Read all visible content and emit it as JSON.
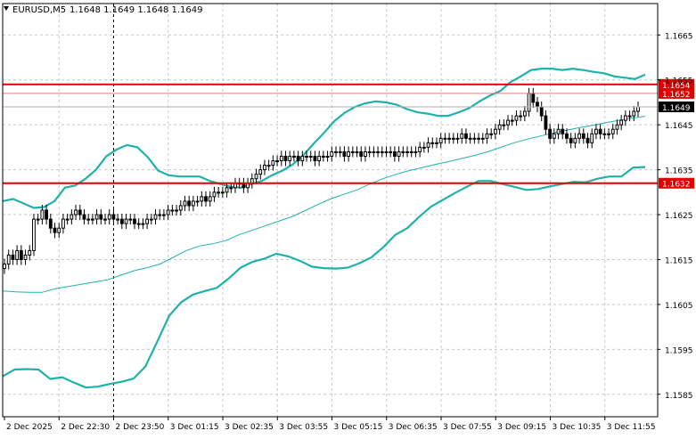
{
  "header": {
    "symbol": "EURUSD,M5",
    "quotes": "1.1648 1.1649 1.1648 1.1649"
  },
  "colors": {
    "grid": "#c8c8c8",
    "candle": "#000000",
    "band": "#20b2aa",
    "level": "#e00000",
    "current": "#000000",
    "badge_text": "#ffffff"
  },
  "chart_data": {
    "type": "candlestick",
    "title": "EURUSD,M5",
    "ylim": [
      1.158,
      1.1672
    ],
    "y_ticks": [
      "1.1665",
      "1.1655",
      "1.1645",
      "1.1635",
      "1.1625",
      "1.1615",
      "1.1605",
      "1.1595",
      "1.1585"
    ],
    "x_labels": [
      "2 Dec 2025",
      "2 Dec 22:30",
      "2 Dec 23:50",
      "3 Dec 01:15",
      "3 Dec 02:35",
      "3 Dec 03:55",
      "3 Dec 05:15",
      "3 Dec 06:35",
      "3 Dec 07:55",
      "3 Dec 09:15",
      "3 Dec 10:35",
      "3 Dec 11:55"
    ],
    "grid": true,
    "levels": [
      {
        "label": "1.1654",
        "value": 1.1654
      },
      {
        "label": "1.1652",
        "value": 1.1652
      },
      {
        "label": "1.1632",
        "value": 1.1632
      }
    ],
    "current_price": {
      "label": "1.1649",
      "value": 1.1649
    },
    "candles_close": [
      1.1614,
      1.1616,
      1.1615,
      1.1617,
      1.1615,
      1.1616,
      1.1617,
      1.1624,
      1.1624,
      1.1626,
      1.1624,
      1.1622,
      1.1621,
      1.1622,
      1.1624,
      1.1624,
      1.1625,
      1.1626,
      1.1625,
      1.1624,
      1.1624,
      1.1624,
      1.1625,
      1.1624,
      1.1624,
      1.1625,
      1.1624,
      1.1624,
      1.1623,
      1.1624,
      1.1624,
      1.1623,
      1.1623,
      1.1623,
      1.1624,
      1.1624,
      1.1625,
      1.1625,
      1.1625,
      1.1626,
      1.1626,
      1.1626,
      1.1627,
      1.1628,
      1.1627,
      1.1628,
      1.1628,
      1.1629,
      1.1628,
      1.1629,
      1.163,
      1.163,
      1.163,
      1.1631,
      1.1631,
      1.1632,
      1.1632,
      1.1631,
      1.1632,
      1.1633,
      1.1634,
      1.1635,
      1.1636,
      1.1636,
      1.1637,
      1.1637,
      1.1638,
      1.1637,
      1.1638,
      1.1638,
      1.1637,
      1.1638,
      1.1638,
      1.1638,
      1.1637,
      1.1638,
      1.1638,
      1.1638,
      1.1639,
      1.1639,
      1.1639,
      1.1638,
      1.1639,
      1.1639,
      1.1639,
      1.1638,
      1.1639,
      1.1639,
      1.1639,
      1.1639,
      1.1639,
      1.1639,
      1.1639,
      1.1638,
      1.1639,
      1.1639,
      1.1639,
      1.1639,
      1.1639,
      1.164,
      1.164,
      1.1641,
      1.1641,
      1.1641,
      1.1642,
      1.1642,
      1.1642,
      1.1642,
      1.1642,
      1.1643,
      1.1642,
      1.1642,
      1.1642,
      1.1642,
      1.1642,
      1.1643,
      1.1643,
      1.1644,
      1.1645,
      1.1645,
      1.1646,
      1.1646,
      1.1647,
      1.1647,
      1.1648,
      1.1652,
      1.165,
      1.1649,
      1.1647,
      1.1644,
      1.1642,
      1.1643,
      1.1644,
      1.1643,
      1.1642,
      1.1641,
      1.1642,
      1.1643,
      1.1642,
      1.1641,
      1.1643,
      1.1644,
      1.1643,
      1.1643,
      1.1643,
      1.1644,
      1.1645,
      1.1646,
      1.1647,
      1.1647,
      1.1648,
      1.1649
    ],
    "series": [
      {
        "name": "",
        "values": [
          1.1628,
          1.16285,
          1.16275,
          1.16265,
          1.16267,
          1.1628,
          1.1631,
          1.16315,
          1.1633,
          1.1635,
          1.1638,
          1.16395,
          1.16405,
          1.164,
          1.16378,
          1.16348,
          1.16338,
          1.16335,
          1.16335,
          1.16335,
          1.16325,
          1.16318,
          1.16312,
          1.1631,
          1.16318,
          1.16325,
          1.16338,
          1.16348,
          1.16362,
          1.16382,
          1.16408,
          1.16432,
          1.16458,
          1.16477,
          1.1649,
          1.16498,
          1.16502,
          1.165,
          1.16495,
          1.16485,
          1.16478,
          1.16475,
          1.1647,
          1.1647,
          1.16478,
          1.16487,
          1.16502,
          1.16515,
          1.16525,
          1.16545,
          1.16558,
          1.16572,
          1.16575,
          1.16575,
          1.16572,
          1.16575,
          1.16572,
          1.16568,
          1.16565,
          1.16558,
          1.16555,
          1.16552,
          1.16562
        ]
      },
      {
        "name": "",
        "values": [
          1.1608,
          1.16078,
          1.16077,
          1.16077,
          1.16085,
          1.1609,
          1.16095,
          1.161,
          1.16105,
          1.16115,
          1.16125,
          1.16132,
          1.1614,
          1.16155,
          1.1617,
          1.1618,
          1.16185,
          1.16192,
          1.16205,
          1.16215,
          1.16225,
          1.16235,
          1.16245,
          1.16258,
          1.16272,
          1.16285,
          1.16295,
          1.16305,
          1.16318,
          1.1633,
          1.1634,
          1.16348,
          1.16355,
          1.16362,
          1.16368,
          1.16375,
          1.16382,
          1.1639,
          1.164,
          1.1641,
          1.16418,
          1.16425,
          1.16432,
          1.16438,
          1.16444,
          1.16449,
          1.16455,
          1.1646,
          1.16465,
          1.16469
        ]
      },
      {
        "name": "",
        "values": [
          1.1589,
          1.15905,
          1.15906,
          1.15905,
          1.15884,
          1.15888,
          1.15876,
          1.15865,
          1.15867,
          1.15873,
          1.15878,
          1.15885,
          1.15912,
          1.15968,
          1.16025,
          1.16055,
          1.16072,
          1.1608,
          1.16087,
          1.16108,
          1.16132,
          1.16145,
          1.16152,
          1.16163,
          1.16157,
          1.16147,
          1.16134,
          1.16131,
          1.1613,
          1.16132,
          1.16142,
          1.16155,
          1.16178,
          1.16205,
          1.1622,
          1.16245,
          1.16268,
          1.16283,
          1.16298,
          1.16312,
          1.16325,
          1.16325,
          1.16318,
          1.16312,
          1.16305,
          1.16307,
          1.16313,
          1.16318,
          1.16323,
          1.16322,
          1.1633,
          1.16335,
          1.16335,
          1.16355,
          1.16356
        ]
      }
    ]
  }
}
